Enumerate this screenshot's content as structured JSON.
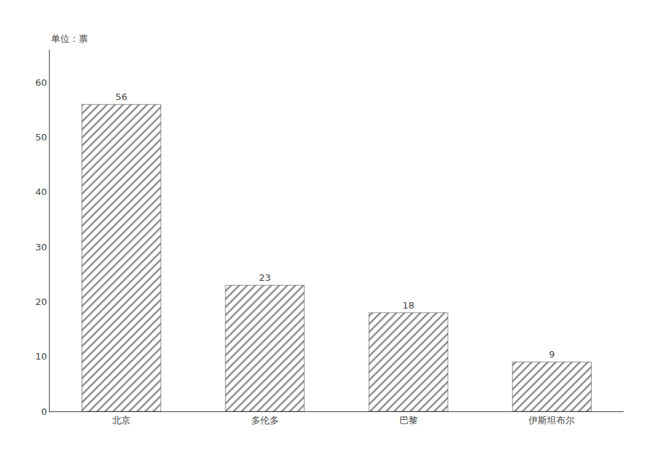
{
  "chart_data": {
    "type": "bar",
    "categories": [
      "北京",
      "多伦多",
      "巴黎",
      "伊斯坦布尔"
    ],
    "values": [
      56,
      23,
      18,
      9
    ],
    "color": "#888888",
    "ylabel": "单位：票",
    "ylim": [
      0,
      66
    ],
    "yticks": [
      0,
      10,
      20,
      30,
      40,
      50,
      60
    ],
    "data_labels": true,
    "grid": false
  }
}
